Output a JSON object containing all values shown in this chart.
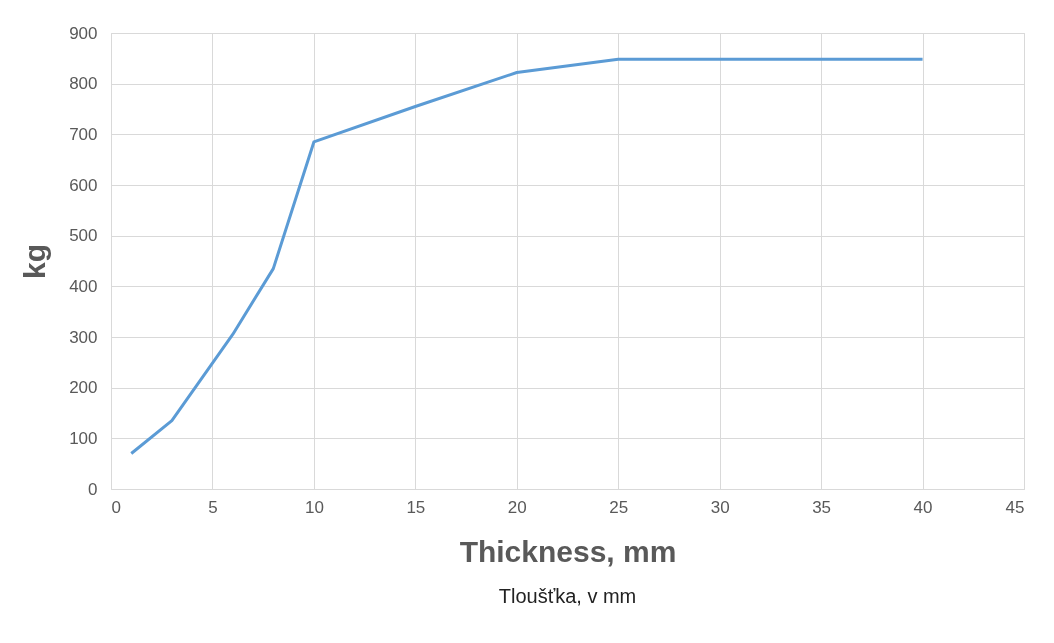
{
  "chart_data": {
    "type": "line",
    "xlabel": "Thickness, mm",
    "ylabel": "kg",
    "annotations": [
      "Tloušťka, v mm"
    ],
    "x": [
      1,
      3,
      6,
      8,
      10,
      15,
      20,
      25,
      30,
      35,
      40
    ],
    "series": [
      {
        "color": "#5b9bd5",
        "values": [
          70,
          135,
          305,
          435,
          685,
          755,
          822,
          848,
          848,
          848,
          848
        ]
      }
    ],
    "xlim": [
      0,
      45
    ],
    "xticks": [
      0,
      5,
      10,
      15,
      20,
      25,
      30,
      35,
      40,
      45
    ],
    "ylim": [
      0,
      900
    ],
    "yticks": [
      0,
      100,
      200,
      300,
      400,
      500,
      600,
      700,
      800,
      900
    ],
    "grid": true,
    "marker": "none",
    "line_style": "solid"
  }
}
